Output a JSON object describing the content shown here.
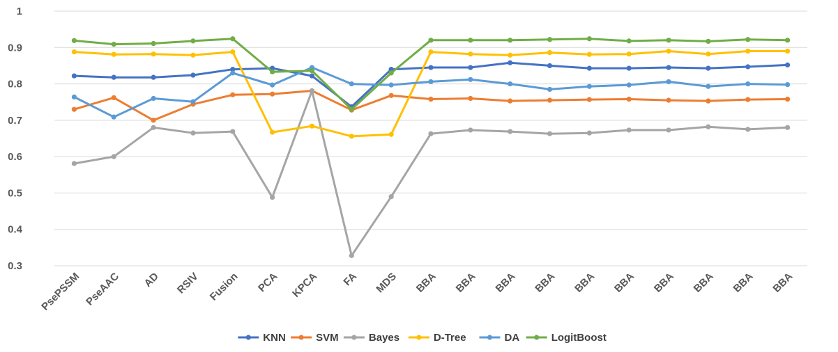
{
  "chart_data": {
    "type": "line",
    "title": "",
    "xlabel": "",
    "ylabel": "",
    "ylim": [
      0.3,
      1
    ],
    "yticks": [
      "0.3",
      "0.4",
      "0.5",
      "0.6",
      "0.7",
      "0.8",
      "0.9",
      "1"
    ],
    "grid": "horizontal",
    "legend_position": "bottom",
    "categories": [
      "PsePSSM",
      "PseAAC",
      "AD",
      "RSIV",
      "Fusion",
      "PCA",
      "KPCA",
      "FA",
      "MDS",
      "BBA",
      "BBA",
      "BBA",
      "BBA",
      "BBA",
      "BBA",
      "BBA",
      "BBA",
      "BBA",
      "BBA"
    ],
    "series": [
      {
        "name": "KNN",
        "color": "#4472c4",
        "values": [
          0.822,
          0.818,
          0.818,
          0.824,
          0.84,
          0.843,
          0.822,
          0.737,
          0.84,
          0.845,
          0.845,
          0.858,
          0.85,
          0.843,
          0.843,
          0.845,
          0.843,
          0.847,
          0.852
        ]
      },
      {
        "name": "SVM",
        "color": "#ed7d31",
        "values": [
          0.73,
          0.762,
          0.7,
          0.744,
          0.77,
          0.772,
          0.781,
          0.728,
          0.768,
          0.758,
          0.76,
          0.753,
          0.755,
          0.757,
          0.758,
          0.755,
          0.753,
          0.757,
          0.758
        ]
      },
      {
        "name": "Bayes",
        "color": "#a5a5a5",
        "values": [
          0.581,
          0.6,
          0.68,
          0.665,
          0.669,
          0.488,
          0.781,
          0.328,
          0.49,
          0.663,
          0.673,
          0.669,
          0.663,
          0.665,
          0.673,
          0.673,
          0.682,
          0.675,
          0.68
        ]
      },
      {
        "name": "D-Tree",
        "color": "#ffc000",
        "values": [
          0.888,
          0.881,
          0.882,
          0.879,
          0.888,
          0.667,
          0.684,
          0.656,
          0.661,
          0.888,
          0.882,
          0.879,
          0.886,
          0.881,
          0.882,
          0.89,
          0.882,
          0.89,
          0.89
        ]
      },
      {
        "name": "DA",
        "color": "#5b9bd5",
        "values": [
          0.764,
          0.709,
          0.76,
          0.751,
          0.83,
          0.797,
          0.845,
          0.8,
          0.797,
          0.806,
          0.812,
          0.8,
          0.785,
          0.793,
          0.797,
          0.806,
          0.793,
          0.8,
          0.798
        ]
      },
      {
        "name": "LogitBoost",
        "color": "#70ad47",
        "values": [
          0.919,
          0.909,
          0.911,
          0.918,
          0.924,
          0.833,
          0.836,
          0.73,
          0.83,
          0.92,
          0.92,
          0.92,
          0.922,
          0.924,
          0.918,
          0.92,
          0.917,
          0.922,
          0.92
        ]
      }
    ]
  }
}
